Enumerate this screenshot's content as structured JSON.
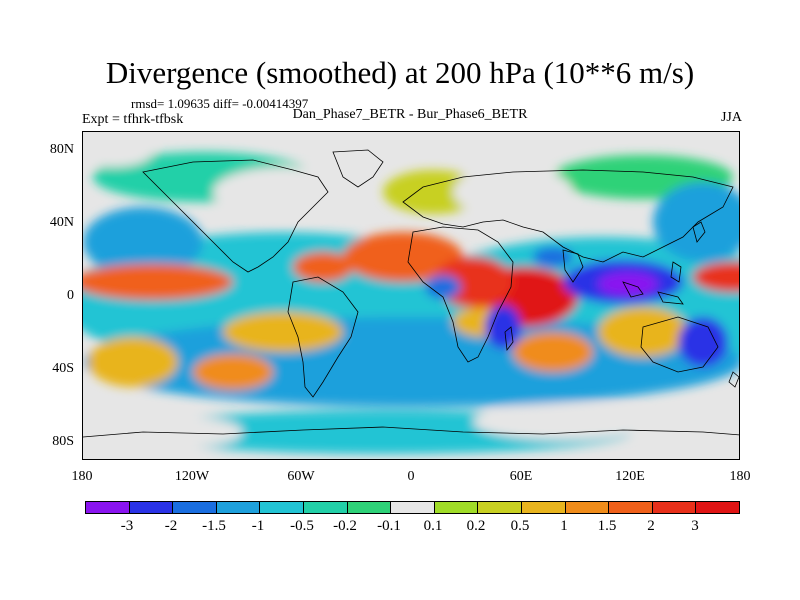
{
  "title": "Divergence (smoothed) at 200 hPa (10**6 m/s)",
  "stats": "rmsd= 1.09635 diff= -0.00414397",
  "expt": "Expt = tfhrk-tfbsk",
  "subtitle": "Dan_Phase7_BETR - Bur_Phase6_BETR",
  "season": "JJA",
  "lat_labels": [
    "80N",
    "40N",
    "0",
    "40S",
    "80S"
  ],
  "lon_labels": [
    "180",
    "120W",
    "60W",
    "0",
    "60E",
    "120E",
    "180"
  ],
  "colorbar": {
    "colors": [
      "#8a14f0",
      "#2a32e6",
      "#1a6ee0",
      "#1ea0dc",
      "#22c4d4",
      "#22d0a8",
      "#2ed278",
      "#e6e6e6",
      "#a0dc28",
      "#c8d022",
      "#e8b41e",
      "#f08c1a",
      "#f0601a",
      "#e8301a",
      "#e01414"
    ],
    "labels": [
      "-3",
      "-2",
      "-1.5",
      "-1",
      "-0.5",
      "-0.2",
      "-0.1",
      "0.1",
      "0.2",
      "0.5",
      "1",
      "1.5",
      "2",
      "3"
    ]
  }
}
